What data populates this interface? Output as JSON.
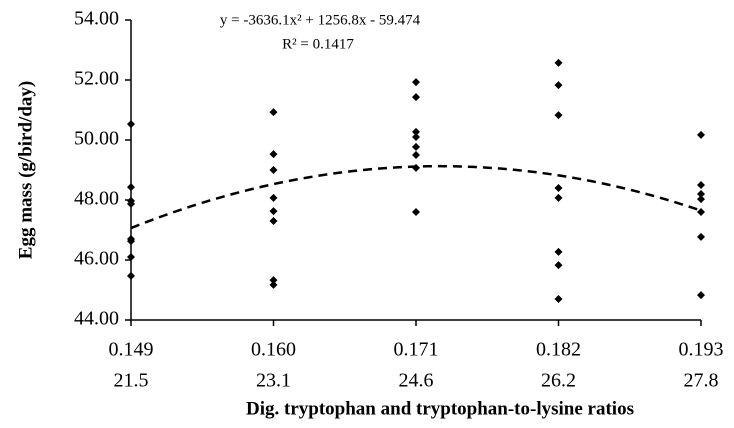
{
  "chart_data": {
    "type": "scatter",
    "y_label": "Egg mass (g/bird/day)",
    "x_label": "Dig. tryptophan and tryptophan-to-lysine ratios",
    "xlim": [
      0.149,
      0.193
    ],
    "ylim": [
      44,
      54
    ],
    "xticks": [
      0.149,
      {
        "value": 0.16,
        "label": "0.160"
      },
      0.171,
      0.182,
      0.193
    ],
    "x2ticks": [
      21.5,
      23.1,
      24.6,
      26.2,
      27.8
    ],
    "yticks": [
      {
        "value": 44,
        "label": "44.00"
      },
      {
        "value": 46,
        "label": "46.00"
      },
      {
        "value": 48,
        "label": "48.00"
      },
      {
        "value": 50,
        "label": "50.00"
      },
      {
        "value": 52,
        "label": "52.00"
      },
      {
        "value": 54,
        "label": "54.00"
      }
    ],
    "color": "#000000",
    "x": [
      0.149,
      0.149,
      0.149,
      0.149,
      0.149,
      0.149,
      0.149,
      0.149,
      0.16,
      0.16,
      0.16,
      0.16,
      0.16,
      0.16,
      0.16,
      0.16,
      0.171,
      0.171,
      0.171,
      0.171,
      0.171,
      0.171,
      0.171,
      0.171,
      0.182,
      0.182,
      0.182,
      0.182,
      0.182,
      0.182,
      0.182,
      0.182,
      0.193,
      0.193,
      0.193,
      0.193,
      0.193,
      0.193,
      0.193
    ],
    "values": [
      50.53,
      48.43,
      47.97,
      47.87,
      46.7,
      46.63,
      46.1,
      45.47,
      50.93,
      49.53,
      49.0,
      48.07,
      47.63,
      47.3,
      45.33,
      45.17,
      51.93,
      51.43,
      50.27,
      50.1,
      49.77,
      49.5,
      49.07,
      47.6,
      52.57,
      51.83,
      50.83,
      48.4,
      48.07,
      46.27,
      45.83,
      44.7,
      50.17,
      48.5,
      48.2,
      48.03,
      47.6,
      46.77,
      44.83
    ],
    "trendline": {
      "coefficients": [
        -3636.1,
        1256.8,
        -59.474
      ],
      "equation": "y = -3636.1x² + 1256.8x - 59.474",
      "r2": "R² = 0.1417"
    }
  }
}
